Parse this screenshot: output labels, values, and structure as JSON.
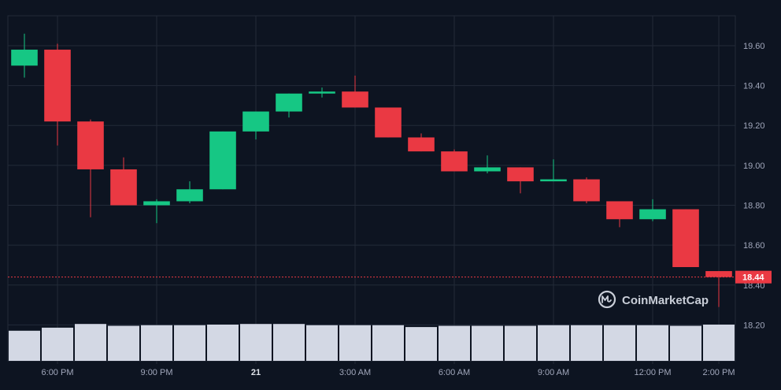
{
  "chart_data": {
    "type": "candlestick",
    "y_ticks": [
      "19.60",
      "19.40",
      "19.20",
      "19.00",
      "18.80",
      "18.60",
      "18.40",
      "18.20"
    ],
    "y_tick_values": [
      19.6,
      19.4,
      19.2,
      19.0,
      18.8,
      18.6,
      18.4,
      18.2
    ],
    "ylim": [
      18.02,
      19.75
    ],
    "x_ticks": [
      {
        "label": "6:00 PM",
        "index": 1.5,
        "bold": false
      },
      {
        "label": "9:00 PM",
        "index": 4.5,
        "bold": false
      },
      {
        "label": "21",
        "index": 7.5,
        "bold": true
      },
      {
        "label": "3:00 AM",
        "index": 10.5,
        "bold": false
      },
      {
        "label": "6:00 AM",
        "index": 13.5,
        "bold": false
      },
      {
        "label": "9:00 AM",
        "index": 16.5,
        "bold": false
      },
      {
        "label": "12:00 PM",
        "index": 19.5,
        "bold": false
      },
      {
        "label": "2:00 PM",
        "index": 21.5,
        "bold": false
      }
    ],
    "candles": [
      {
        "open": 19.5,
        "high": 19.66,
        "low": 19.44,
        "close": 19.58
      },
      {
        "open": 19.58,
        "high": 19.61,
        "low": 19.1,
        "close": 19.22
      },
      {
        "open": 19.22,
        "high": 19.23,
        "low": 18.74,
        "close": 18.98
      },
      {
        "open": 18.98,
        "high": 19.04,
        "low": 18.8,
        "close": 18.8
      },
      {
        "open": 18.8,
        "high": 18.83,
        "low": 18.71,
        "close": 18.82
      },
      {
        "open": 18.82,
        "high": 18.92,
        "low": 18.81,
        "close": 18.88
      },
      {
        "open": 18.88,
        "high": 19.17,
        "low": 18.88,
        "close": 19.17
      },
      {
        "open": 19.17,
        "high": 19.27,
        "low": 19.13,
        "close": 19.27
      },
      {
        "open": 19.27,
        "high": 19.36,
        "low": 19.24,
        "close": 19.36
      },
      {
        "open": 19.36,
        "high": 19.39,
        "low": 19.34,
        "close": 19.37
      },
      {
        "open": 19.37,
        "high": 19.45,
        "low": 19.29,
        "close": 19.29
      },
      {
        "open": 19.29,
        "high": 19.29,
        "low": 19.14,
        "close": 19.14
      },
      {
        "open": 19.14,
        "high": 19.16,
        "low": 19.07,
        "close": 19.07
      },
      {
        "open": 19.07,
        "high": 19.08,
        "low": 18.97,
        "close": 18.97
      },
      {
        "open": 18.97,
        "high": 19.05,
        "low": 18.96,
        "close": 18.99
      },
      {
        "open": 18.99,
        "high": 18.99,
        "low": 18.86,
        "close": 18.92
      },
      {
        "open": 18.92,
        "high": 19.03,
        "low": 18.92,
        "close": 18.93
      },
      {
        "open": 18.93,
        "high": 18.94,
        "low": 18.81,
        "close": 18.82
      },
      {
        "open": 18.82,
        "high": 18.82,
        "low": 18.69,
        "close": 18.73
      },
      {
        "open": 18.73,
        "high": 18.83,
        "low": 18.72,
        "close": 18.78
      },
      {
        "open": 18.78,
        "high": 18.78,
        "low": 18.49,
        "close": 18.49
      },
      {
        "open": 18.47,
        "high": 18.47,
        "low": 18.29,
        "close": 18.44
      }
    ],
    "volume_relative": [
      0.49,
      0.54,
      0.6,
      0.57,
      0.58,
      0.58,
      0.59,
      0.6,
      0.6,
      0.58,
      0.58,
      0.58,
      0.55,
      0.57,
      0.57,
      0.57,
      0.58,
      0.58,
      0.58,
      0.58,
      0.57,
      0.59
    ],
    "current_price": 18.44,
    "current_price_label": "18.44",
    "grid": true,
    "colors": {
      "background": "#0d1421",
      "up": "#16c784",
      "down": "#ea3943",
      "volume": "#d3d8e4",
      "grid": "#222a38",
      "axis_text": "#a1a7bb",
      "tick_text_bold": "#dfe3ea",
      "price_label_bg": "#ea3943",
      "price_label_text": "#ffffff",
      "watermark": "#c9ced8"
    }
  },
  "watermark": {
    "text": "CoinMarketCap",
    "icon": "coinmarketcap-logo-icon"
  }
}
